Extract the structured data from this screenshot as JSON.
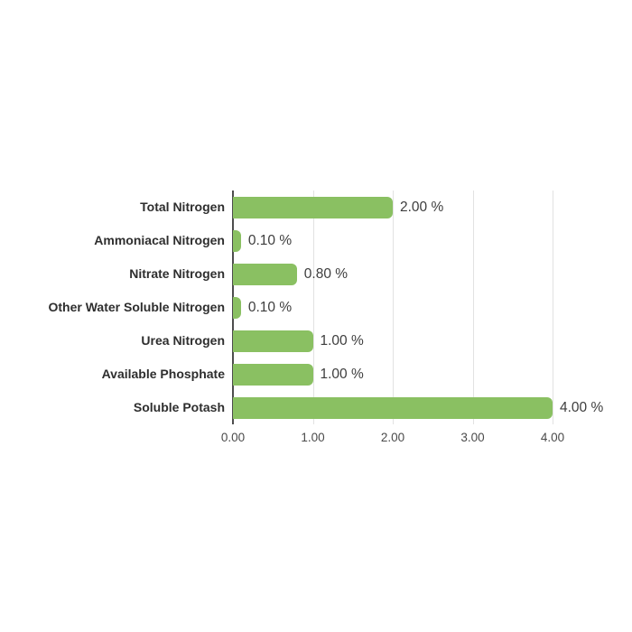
{
  "page": {
    "background": "#ffffff"
  },
  "chart_data": {
    "type": "bar",
    "orientation": "horizontal",
    "title": "",
    "xlabel": "",
    "ylabel": "",
    "categories": [
      "Total Nitrogen",
      "Ammoniacal Nitrogen",
      "Nitrate Nitrogen",
      "Other Water Soluble Nitrogen",
      "Urea Nitrogen",
      "Available Phosphate",
      "Soluble Potash"
    ],
    "values": [
      2.0,
      0.1,
      0.8,
      0.1,
      1.0,
      1.0,
      4.0
    ],
    "value_labels": [
      "2.00 %",
      "0.10 %",
      "0.80 %",
      "0.10 %",
      "1.00 %",
      "1.00 %",
      "4.00 %"
    ],
    "x_tick_values": [
      0,
      1,
      2,
      3,
      4
    ],
    "x_tick_labels": [
      "0.00",
      "1.00",
      "2.00",
      "3.00",
      "4.00"
    ],
    "xlim": [
      0,
      4.54
    ],
    "grid": true,
    "legend": false,
    "colors": {
      "bar": "#8ac062",
      "axis_line": "#4d4d4d",
      "gridline": "#e2e2e2",
      "category_label": "#2e2e2e",
      "value_label": "#3d3d3d",
      "tick_label": "#4a4a4a"
    }
  }
}
